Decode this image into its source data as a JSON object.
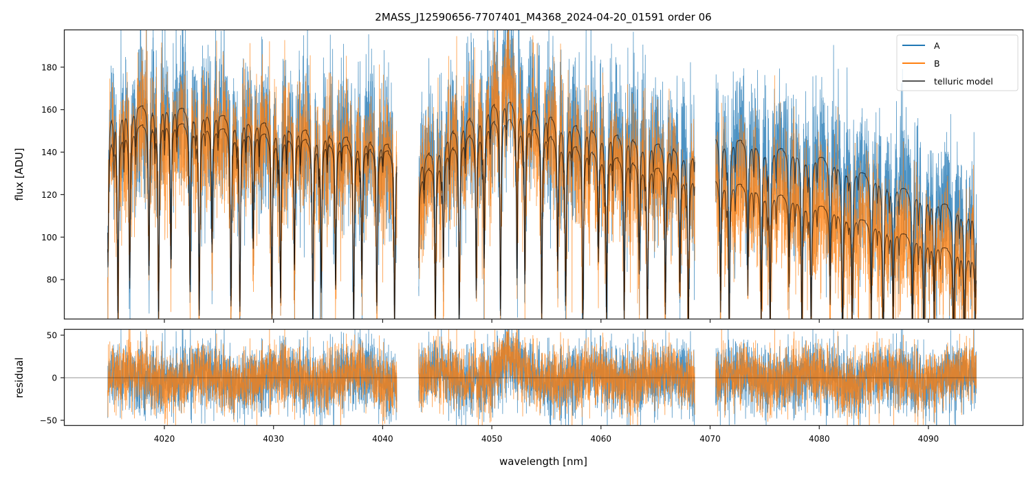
{
  "chart_data": [
    {
      "type": "line",
      "panel": "flux",
      "title": "2MASS_J12590656-7707401_M4368_2024-04-20_01591  order 06",
      "xlabel": "",
      "ylabel": "flux [ADU]",
      "xlim": [
        4010.8,
        4098.7
      ],
      "ylim": [
        61.3,
        197.7
      ],
      "xticks": [
        4020,
        4030,
        4040,
        4050,
        4060,
        4070,
        4080,
        4090
      ],
      "yticks": [
        80,
        100,
        120,
        140,
        160,
        180
      ],
      "ytick_labels": [
        "80",
        "100",
        "120",
        "140",
        "160",
        "180"
      ],
      "grid": false,
      "legend": {
        "position": "top-right",
        "entries": [
          {
            "label": "A",
            "color": "#1f77b4"
          },
          {
            "label": "B",
            "color": "#ff7f0e"
          },
          {
            "label": "telluric model",
            "color": "#555555"
          }
        ]
      },
      "segments": [
        {
          "x_start": 4014.8,
          "x_end": 4041.3
        },
        {
          "x_start": 4043.3,
          "x_end": 4068.6
        },
        {
          "x_start": 4070.5,
          "x_end": 4094.4
        }
      ],
      "series": [
        {
          "name": "A",
          "color": "#1f77b4",
          "continuum": [
            {
              "x": 4014.8,
              "y": 158
            },
            {
              "x": 4019.0,
              "y": 163
            },
            {
              "x": 4030.0,
              "y": 153
            },
            {
              "x": 4041.3,
              "y": 143
            },
            {
              "x": 4043.3,
              "y": 135
            },
            {
              "x": 4047.0,
              "y": 153
            },
            {
              "x": 4051.0,
              "y": 165
            },
            {
              "x": 4058.0,
              "y": 152
            },
            {
              "x": 4068.6,
              "y": 140
            },
            {
              "x": 4070.5,
              "y": 148
            },
            {
              "x": 4080.0,
              "y": 138
            },
            {
              "x": 4094.4,
              "y": 110
            }
          ],
          "noise_sigma": 18
        },
        {
          "name": "B",
          "color": "#ff7f0e",
          "continuum": [
            {
              "x": 4014.8,
              "y": 146
            },
            {
              "x": 4019.0,
              "y": 155
            },
            {
              "x": 4030.0,
              "y": 148
            },
            {
              "x": 4041.3,
              "y": 140
            },
            {
              "x": 4043.3,
              "y": 128
            },
            {
              "x": 4047.0,
              "y": 145
            },
            {
              "x": 4051.0,
              "y": 157
            },
            {
              "x": 4058.0,
              "y": 142
            },
            {
              "x": 4068.6,
              "y": 128
            },
            {
              "x": 4070.5,
              "y": 128
            },
            {
              "x": 4080.0,
              "y": 115
            },
            {
              "x": 4094.4,
              "y": 90
            }
          ],
          "noise_sigma": 16
        }
      ],
      "telluric_line_spacing_nm": 1.25
    },
    {
      "type": "line",
      "panel": "residual",
      "xlabel": "wavelength [nm]",
      "ylabel": "residual",
      "xlim": [
        4010.8,
        4098.7
      ],
      "ylim": [
        -56.5,
        57.3
      ],
      "xticks": [
        4020,
        4030,
        4040,
        4050,
        4060,
        4070,
        4080,
        4090
      ],
      "xtick_labels": [
        "4020",
        "4030",
        "4040",
        "4050",
        "4060",
        "4070",
        "4080",
        "4090"
      ],
      "yticks": [
        -50,
        0,
        50
      ],
      "ytick_labels": [
        "−50",
        "0",
        "50"
      ],
      "zero_line": 0,
      "series": [
        {
          "name": "A",
          "color": "#1f77b4",
          "noise_sigma": 20
        },
        {
          "name": "B",
          "color": "#ff7f0e",
          "noise_sigma": 18
        }
      ]
    }
  ]
}
